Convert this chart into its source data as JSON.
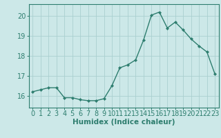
{
  "x": [
    0,
    1,
    2,
    3,
    4,
    5,
    6,
    7,
    8,
    9,
    10,
    11,
    12,
    13,
    14,
    15,
    16,
    17,
    18,
    19,
    20,
    21,
    22,
    23
  ],
  "y": [
    16.2,
    16.3,
    16.4,
    16.4,
    15.9,
    15.9,
    15.8,
    15.75,
    15.75,
    15.85,
    16.5,
    17.4,
    17.55,
    17.8,
    18.8,
    20.05,
    20.2,
    19.4,
    19.7,
    19.3,
    18.85,
    18.5,
    18.2,
    17.1
  ],
  "line_color": "#2d7d6e",
  "marker": "D",
  "marker_size": 2.2,
  "bg_color": "#cce8e8",
  "grid_color": "#aacfcf",
  "tick_color": "#2d7d6e",
  "label_color": "#2d7d6e",
  "xlabel": "Humidex (Indice chaleur)",
  "ylim": [
    15.4,
    20.6
  ],
  "yticks": [
    16,
    17,
    18,
    19,
    20
  ],
  "xtick_labels": [
    "0",
    "1",
    "2",
    "3",
    "4",
    "5",
    "6",
    "7",
    "8",
    "9",
    "10",
    "11",
    "12",
    "13",
    "14",
    "15",
    "16",
    "17",
    "18",
    "19",
    "20",
    "21",
    "22",
    "23"
  ],
  "xlabel_fontsize": 7.5,
  "tick_fontsize": 7.0,
  "linewidth": 1.0
}
